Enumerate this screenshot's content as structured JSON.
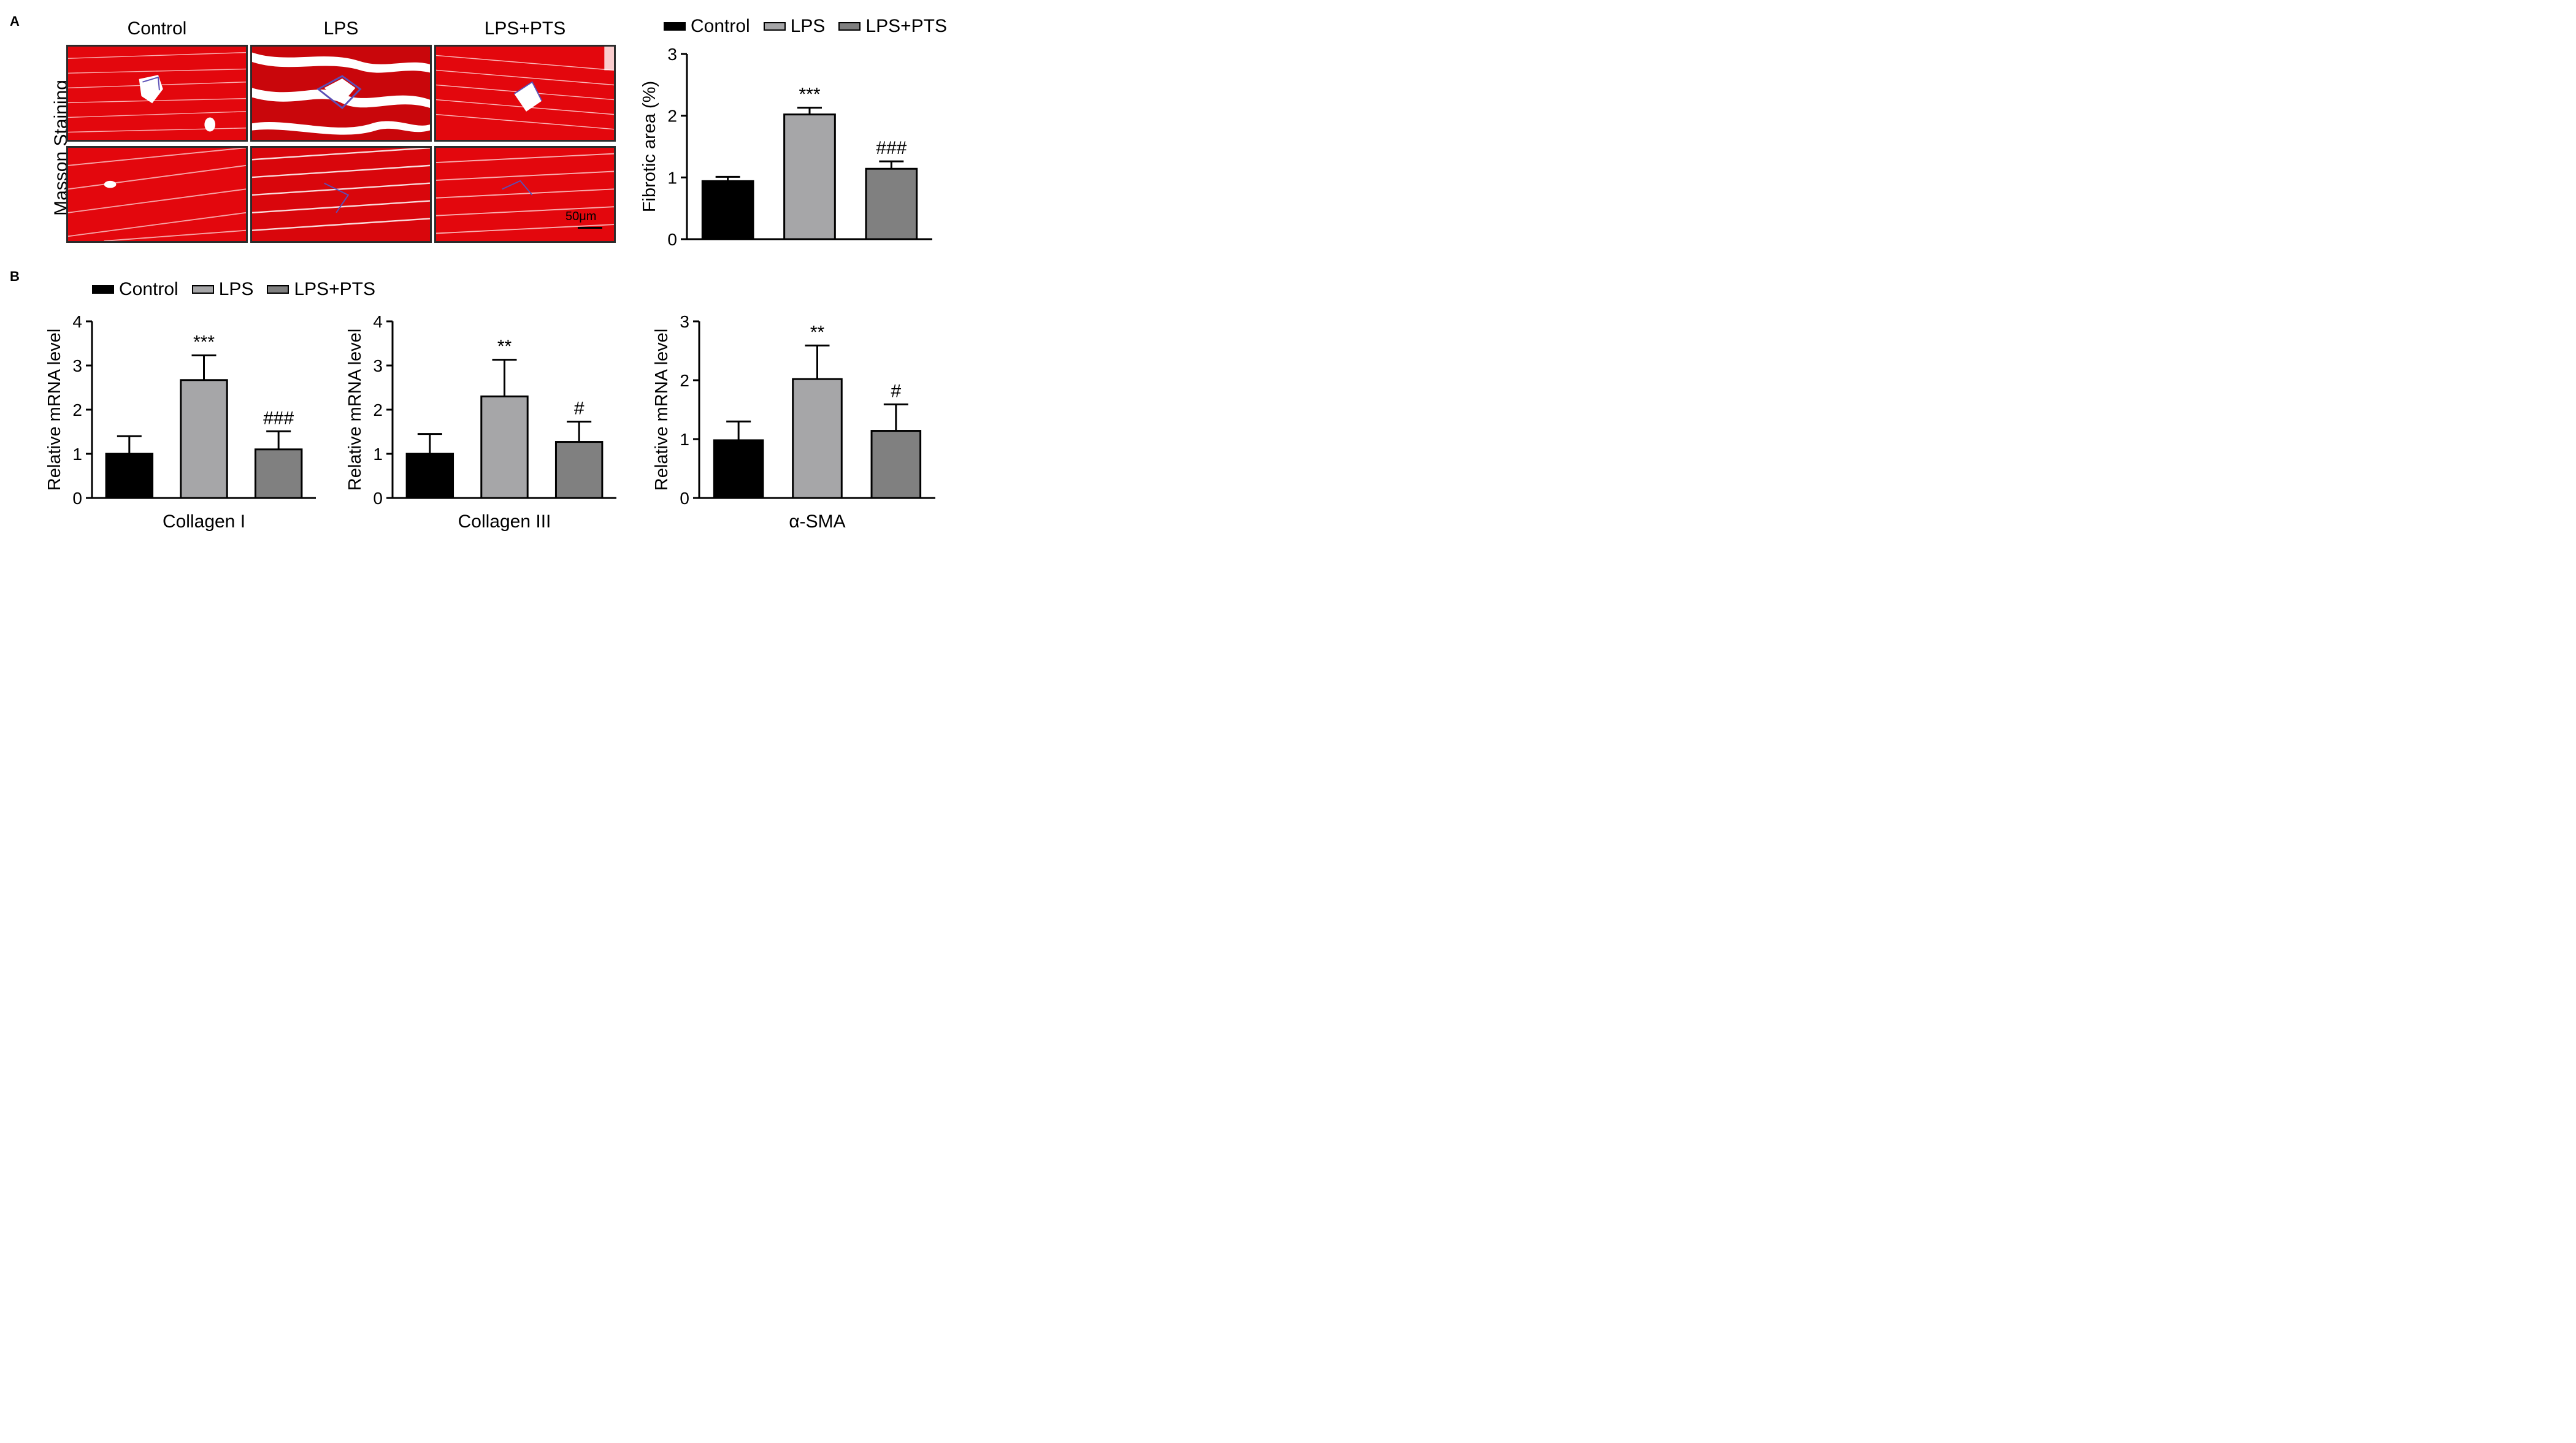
{
  "panels": {
    "a_label": "A",
    "b_label": "B"
  },
  "staining": {
    "row_label": "Masson Staining",
    "columns": [
      "Control",
      "LPS",
      "LPS+PTS"
    ],
    "scale_bar": "50μm"
  },
  "legend": {
    "items": [
      {
        "name": "Control",
        "color": "#000000"
      },
      {
        "name": "LPS",
        "color": "#a6a6a8"
      },
      {
        "name": "LPS+PTS",
        "color": "#808080"
      }
    ]
  },
  "colors": {
    "control": "#000000",
    "lps": "#a6a6a8",
    "lps_pts": "#808080",
    "tissue": "#e3070d",
    "fibrosis": "#5b4fb6"
  },
  "chart_data": [
    {
      "id": "fibrotic",
      "type": "bar",
      "categories": [
        "Control",
        "LPS",
        "LPS+PTS"
      ],
      "values": [
        0.94,
        2.02,
        1.14
      ],
      "errors": [
        0.07,
        0.11,
        0.12
      ],
      "annotations": [
        "",
        "***",
        "###"
      ],
      "ylabel": "Fibrotic area (%)",
      "xlabel": "",
      "ylim": [
        0,
        3
      ],
      "yticks": [
        "0",
        "1",
        "2",
        "3"
      ]
    },
    {
      "id": "collagen1",
      "type": "bar",
      "categories": [
        "Control",
        "LPS",
        "LPS+PTS"
      ],
      "values": [
        1.0,
        2.67,
        1.1
      ],
      "errors": [
        0.4,
        0.56,
        0.41
      ],
      "annotations": [
        "",
        "***",
        "###"
      ],
      "ylabel": "Relative mRNA level",
      "xlabel": "Collagen I",
      "ylim": [
        0,
        4
      ],
      "yticks": [
        "0",
        "1",
        "2",
        "3",
        "4"
      ]
    },
    {
      "id": "collagen3",
      "type": "bar",
      "categories": [
        "Control",
        "LPS",
        "LPS+PTS"
      ],
      "values": [
        1.0,
        2.3,
        1.27
      ],
      "errors": [
        0.45,
        0.83,
        0.46
      ],
      "annotations": [
        "",
        "**",
        "#"
      ],
      "ylabel": "Relative mRNA level",
      "xlabel": "Collagen III",
      "ylim": [
        0,
        4
      ],
      "yticks": [
        "0",
        "1",
        "2",
        "3",
        "4"
      ]
    },
    {
      "id": "asma",
      "type": "bar",
      "categories": [
        "Control",
        "LPS",
        "LPS+PTS"
      ],
      "values": [
        0.98,
        2.02,
        1.14
      ],
      "errors": [
        0.32,
        0.57,
        0.45
      ],
      "annotations": [
        "",
        "**",
        "#"
      ],
      "ylabel": "Relative mRNA level",
      "xlabel": "α-SMA",
      "ylim": [
        0,
        3
      ],
      "yticks": [
        "0",
        "1",
        "2",
        "3"
      ]
    }
  ]
}
